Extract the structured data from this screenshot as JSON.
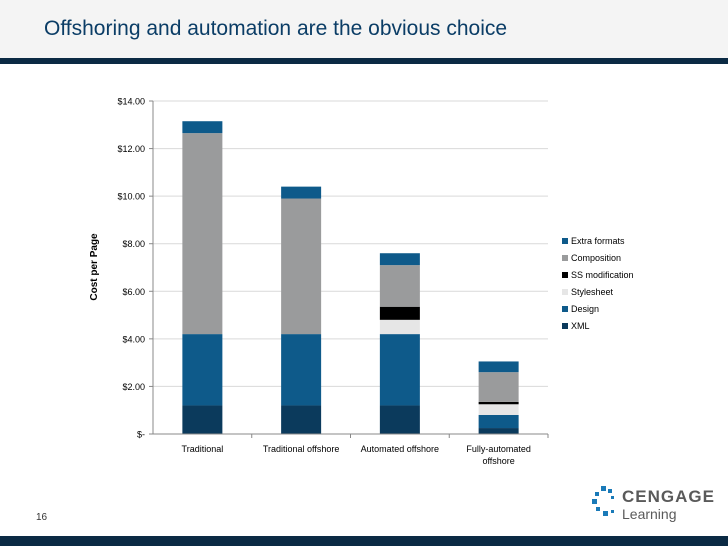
{
  "slide": {
    "title": "Offshoring and automation are the obvious choice",
    "page_number": "16"
  },
  "logo": {
    "line1": "CENGAGE",
    "line2": "Learning"
  },
  "colors": {
    "title": "#0b3d66",
    "rule": "#0b2a44",
    "gridline": "#d9d9d9"
  },
  "chart_data": {
    "type": "bar",
    "stacked": true,
    "ylabel": "Cost per Page",
    "xlabel": "",
    "ylim": [
      0,
      14
    ],
    "yticks": [
      0,
      2,
      4,
      6,
      8,
      10,
      12,
      14
    ],
    "ytick_labels": [
      "$-",
      "$2.00",
      "$4.00",
      "$6.00",
      "$8.00",
      "$10.00",
      "$12.00",
      "$14.00"
    ],
    "grid": true,
    "legend_position": "right",
    "categories": [
      "Traditional",
      "Traditional offshore",
      "Automated offshore",
      "Fully-automated offshore"
    ],
    "category_lines": [
      [
        "Traditional"
      ],
      [
        "Traditional offshore"
      ],
      [
        "Automated offshore"
      ],
      [
        "Fully-automated",
        "offshore"
      ]
    ],
    "series": [
      {
        "name": "XML",
        "color": "#0b3a5c",
        "values": [
          1.2,
          1.2,
          1.2,
          0.25
        ]
      },
      {
        "name": "Design",
        "color": "#0e5a8a",
        "values": [
          3.0,
          3.0,
          3.0,
          0.55
        ]
      },
      {
        "name": "Stylesheet",
        "color": "#e6e6e6",
        "values": [
          0,
          0,
          0.6,
          0.45
        ]
      },
      {
        "name": "SS modification",
        "color": "#000000",
        "values": [
          0,
          0,
          0.55,
          0.1
        ]
      },
      {
        "name": "Composition",
        "color": "#9a9b9c",
        "values": [
          8.45,
          5.7,
          1.75,
          1.25
        ]
      },
      {
        "name": "Extra formats",
        "color": "#0e5a8a",
        "values": [
          0.5,
          0.5,
          0.5,
          0.45
        ]
      }
    ]
  }
}
